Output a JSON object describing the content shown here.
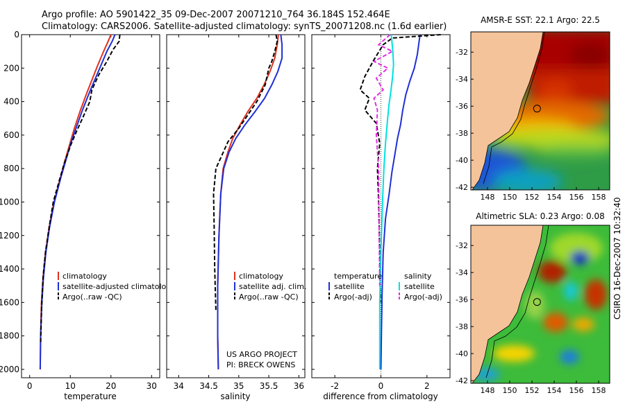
{
  "header": {
    "line1": "Argo profile: AO 5901422_35 09-Dec-2007 20071210_764 36.184S 152.464E",
    "line2": "Climatology: CARS2006. Satellite-adjusted climatology: synTS_20071208.nc (1.6d earlier)"
  },
  "side_label": "CSIRO 16-Dec-2007 10:32:40",
  "colors": {
    "climatology": "#e0301e",
    "satellite": "#1f2fd6",
    "argo": "#000000",
    "sat_salinity": "#00e0e0",
    "argo_salinity": "#e030e0",
    "land": "#f5c39a"
  },
  "chart_data": [
    {
      "type": "line",
      "xlabel": "temperature",
      "xlim": [
        -2,
        32
      ],
      "xticks": [
        "0",
        "10",
        "20",
        "30"
      ],
      "ylim": [
        0,
        2050
      ],
      "yticks": [
        "0",
        "200",
        "400",
        "600",
        "800",
        "1000",
        "1200",
        "1400",
        "1600",
        "1800",
        "2000"
      ],
      "y_reversed": true,
      "legend": [
        "climatology",
        "satellite-adjusted climatology",
        "Argo(..raw -QC)"
      ],
      "legend_position": "lower-right",
      "series": [
        {
          "name": "climatology",
          "style": "solid",
          "color": "climatology",
          "x": [
            20,
            19.3,
            18.2,
            16.8,
            15.5,
            14.2,
            12.5,
            11.0,
            9.9,
            8.6,
            7.5,
            6.0,
            4.8,
            3.9,
            3.3,
            2.9,
            2.7,
            2.6
          ],
          "y": [
            0,
            40,
            100,
            180,
            260,
            340,
            450,
            560,
            650,
            760,
            860,
            1000,
            1150,
            1300,
            1450,
            1600,
            1800,
            2000
          ]
        },
        {
          "name": "satellite-adjusted climatology",
          "style": "solid",
          "color": "satellite",
          "x": [
            21.0,
            20.3,
            19.0,
            17.6,
            16.2,
            14.8,
            13.0,
            11.4,
            10.1,
            8.8,
            7.6,
            6.1,
            4.9,
            4.0,
            3.4,
            3.0,
            2.7,
            2.6
          ],
          "y": [
            0,
            40,
            100,
            180,
            260,
            340,
            450,
            560,
            650,
            760,
            860,
            1000,
            1150,
            1300,
            1450,
            1600,
            1800,
            2000
          ]
        },
        {
          "name": "Argo(..raw -QC)",
          "style": "dashed",
          "color": "argo",
          "x": [
            22.2,
            22.0,
            20.5,
            19.0,
            17.0,
            15.3,
            14.8,
            13.0,
            11.5,
            10.1,
            8.5,
            7.2,
            5.8,
            4.8,
            3.9,
            3.3,
            2.9,
            2.7
          ],
          "y": [
            0,
            40,
            90,
            160,
            240,
            330,
            400,
            500,
            580,
            660,
            770,
            880,
            1000,
            1150,
            1300,
            1450,
            1650,
            1850
          ]
        }
      ]
    },
    {
      "type": "line",
      "xlabel": "salinity",
      "xlim": [
        33.8,
        36.1
      ],
      "xticks": [
        "34",
        "34.5",
        "35",
        "35.5",
        "36"
      ],
      "ylim": [
        0,
        2050
      ],
      "y_reversed": true,
      "legend": [
        "climatology",
        "satellite adj. clim.",
        "Argo(..raw -QC)"
      ],
      "legend_position": "lower-right",
      "annotation": [
        "US ARGO PROJECT",
        "PI: BRECK OWENS"
      ],
      "series": [
        {
          "name": "climatology",
          "style": "solid",
          "color": "climatology",
          "x": [
            35.66,
            35.64,
            35.6,
            35.52,
            35.42,
            35.3,
            35.15,
            35.02,
            34.9,
            34.82,
            34.74,
            34.7,
            34.67,
            34.65,
            34.65,
            34.66
          ],
          "y": [
            0,
            60,
            140,
            220,
            300,
            380,
            460,
            540,
            620,
            700,
            800,
            950,
            1200,
            1500,
            1800,
            2000
          ]
        },
        {
          "name": "satellite adj. clim.",
          "style": "solid",
          "color": "satellite",
          "x": [
            35.7,
            35.72,
            35.72,
            35.65,
            35.55,
            35.43,
            35.27,
            35.1,
            34.95,
            34.84,
            34.75,
            34.7,
            34.67,
            34.65,
            34.65,
            34.66
          ],
          "y": [
            0,
            60,
            140,
            220,
            300,
            380,
            460,
            540,
            620,
            700,
            800,
            950,
            1200,
            1500,
            1800,
            2000
          ]
        },
        {
          "name": "Argo(..raw -QC)",
          "style": "dashed",
          "color": "argo",
          "x": [
            35.62,
            35.64,
            35.6,
            35.55,
            35.5,
            35.44,
            35.3,
            35.15,
            35.0,
            34.82,
            34.72,
            34.62,
            34.58,
            34.59,
            34.6,
            34.62
          ],
          "y": [
            0,
            40,
            100,
            160,
            200,
            300,
            400,
            480,
            560,
            640,
            720,
            800,
            950,
            1150,
            1400,
            1650
          ]
        }
      ]
    },
    {
      "type": "line",
      "xlabel": "difference from climatology",
      "xlim": [
        -3,
        3
      ],
      "xticks": [
        "-2",
        "0",
        "2"
      ],
      "ylim": [
        0,
        2050
      ],
      "y_reversed": true,
      "zero_line": "dotted",
      "legend_titles": [
        "temperature",
        "salinity"
      ],
      "legend": [
        "satellite",
        "Argo(-adj)",
        "satellite",
        "Argo(-adj)"
      ],
      "legend_position": "lower-right",
      "series": [
        {
          "name": "satellite",
          "group": "temperature",
          "style": "solid",
          "color": "satellite",
          "x": [
            1.7,
            1.65,
            1.58,
            1.45,
            1.25,
            1.08,
            0.95,
            0.85,
            0.72,
            0.6,
            0.48,
            0.36,
            0.2,
            0.1,
            0.05,
            0.02,
            0.0
          ],
          "y": [
            0,
            50,
            120,
            200,
            280,
            360,
            450,
            540,
            620,
            720,
            820,
            950,
            1100,
            1300,
            1550,
            1800,
            2000
          ]
        },
        {
          "name": "Argo(-adj)",
          "group": "temperature",
          "style": "dashed",
          "color": "argo",
          "x": [
            2.6,
            0.5,
            0.1,
            -0.3,
            -0.7,
            -0.9,
            -0.5,
            -0.7,
            -0.2,
            -0.05,
            -0.15,
            -0.1,
            -0.05,
            -0.02
          ],
          "y": [
            0,
            20,
            60,
            150,
            250,
            330,
            380,
            450,
            530,
            650,
            800,
            1000,
            1300,
            1600
          ]
        },
        {
          "name": "satellite",
          "group": "salinity",
          "style": "solid",
          "color": "sat_salinity",
          "x": [
            0.45,
            0.52,
            0.55,
            0.5,
            0.43,
            0.35,
            0.28,
            0.2,
            0.13,
            0.07,
            0.0,
            -0.05,
            -0.05
          ],
          "y": [
            0,
            100,
            180,
            260,
            340,
            420,
            520,
            650,
            800,
            1000,
            1300,
            1600,
            2000
          ]
        },
        {
          "name": "Argo(-adj)",
          "group": "salinity",
          "style": "dashed",
          "color": "argo_salinity",
          "x": [
            0.4,
            -0.1,
            0.5,
            -0.3,
            0.3,
            -0.2,
            0.1,
            -0.3,
            -0.15,
            -0.2,
            -0.1,
            -0.08,
            -0.05
          ],
          "y": [
            0,
            60,
            100,
            160,
            200,
            260,
            330,
            380,
            450,
            600,
            800,
            1100,
            1500
          ]
        }
      ]
    },
    {
      "type": "heatmap",
      "title": "AMSR-E SST: 22.1 Argo: 22.5",
      "xticks": [
        "148",
        "150",
        "152",
        "154",
        "156",
        "158"
      ],
      "yticks": [
        "-32",
        "-34",
        "-36",
        "-38",
        "-40",
        "-42"
      ],
      "xlim": [
        146.5,
        159
      ],
      "ylim": [
        -42.2,
        -30.5
      ],
      "marker": {
        "lon": 152.46,
        "lat": -36.18
      }
    },
    {
      "type": "heatmap",
      "title": "Altimetric SLA: 0.23 Argo: 0.08",
      "xticks": [
        "148",
        "150",
        "152",
        "154",
        "156",
        "158"
      ],
      "yticks": [
        "-32",
        "-34",
        "-36",
        "-38",
        "-40",
        "-42"
      ],
      "xlim": [
        146.5,
        159
      ],
      "ylim": [
        -42.2,
        -30.5
      ],
      "marker": {
        "lon": 152.46,
        "lat": -36.18
      }
    }
  ]
}
